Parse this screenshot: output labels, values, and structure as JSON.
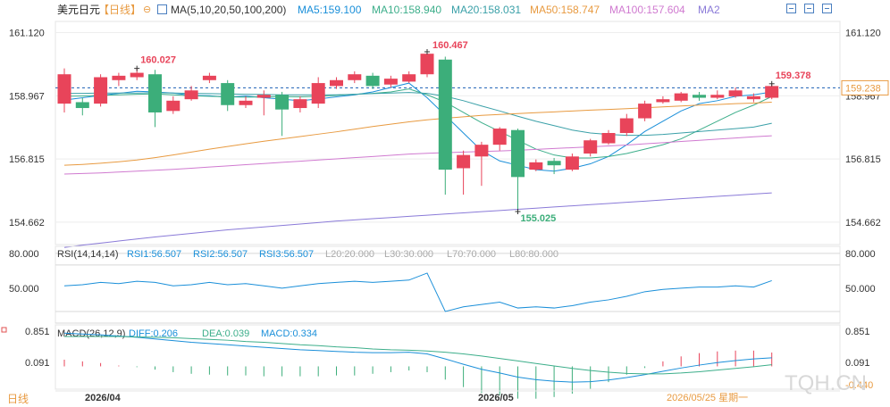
{
  "header": {
    "symbol": "美元日元",
    "period_tag": "【日线】",
    "ma_label": "MA(5,10,20,50,100,200)",
    "ma_values": [
      {
        "text": "MA5:159.100",
        "color": "#1a8fd9"
      },
      {
        "text": "MA10:158.940",
        "color": "#3cae8a"
      },
      {
        "text": "MA20:158.031",
        "color": "#3aa0a8"
      },
      {
        "text": "MA50:158.747",
        "color": "#e89a40"
      },
      {
        "text": "MA100:157.604",
        "color": "#d07ad0"
      },
      {
        "text": "MA2",
        "color": "#8a7ad8"
      }
    ]
  },
  "watermark": "TQH.CN",
  "footer": {
    "period": "日线",
    "month_labels": [
      "2026/04",
      "2026/05"
    ],
    "cursor_date": "2026/05/25 星期一"
  },
  "chart_data": [
    {
      "type": "candlestick",
      "name": "美元日元 日线",
      "y_ticks": [
        "161.120",
        "158.967",
        "156.815",
        "154.662"
      ],
      "ylim": [
        153.9,
        161.5
      ],
      "current_price": "159.238",
      "annotations": {
        "high1": "160.027",
        "high2": "160.467",
        "low": "155.025",
        "last_high": "159.378"
      },
      "candles": [
        {
          "open": 158.7,
          "close": 159.7,
          "high": 159.9,
          "low": 158.4
        },
        {
          "open": 158.75,
          "close": 158.55,
          "high": 158.9,
          "low": 158.3
        },
        {
          "open": 158.7,
          "close": 159.6,
          "high": 159.7,
          "low": 158.6
        },
        {
          "open": 159.5,
          "close": 159.65,
          "high": 159.75,
          "low": 159.3
        },
        {
          "open": 159.6,
          "close": 159.75,
          "high": 159.9,
          "low": 159.5
        },
        {
          "open": 159.7,
          "close": 158.4,
          "high": 159.85,
          "low": 157.9
        },
        {
          "open": 158.45,
          "close": 158.8,
          "high": 158.95,
          "low": 158.35
        },
        {
          "open": 158.85,
          "close": 159.15,
          "high": 159.3,
          "low": 158.8
        },
        {
          "open": 159.5,
          "close": 159.65,
          "high": 159.75,
          "low": 159.4
        },
        {
          "open": 159.4,
          "close": 158.65,
          "high": 159.5,
          "low": 158.45
        },
        {
          "open": 158.65,
          "close": 158.8,
          "high": 158.95,
          "low": 158.55
        },
        {
          "open": 158.9,
          "close": 159.0,
          "high": 159.15,
          "low": 158.3
        },
        {
          "open": 159.0,
          "close": 158.5,
          "high": 159.1,
          "low": 157.6
        },
        {
          "open": 158.55,
          "close": 158.85,
          "high": 158.95,
          "low": 158.4
        },
        {
          "open": 158.7,
          "close": 159.4,
          "high": 159.6,
          "low": 158.55
        },
        {
          "open": 159.3,
          "close": 159.5,
          "high": 159.6,
          "low": 159.2
        },
        {
          "open": 159.5,
          "close": 159.7,
          "high": 159.8,
          "low": 159.4
        },
        {
          "open": 159.65,
          "close": 159.3,
          "high": 159.75,
          "low": 159.2
        },
        {
          "open": 159.35,
          "close": 159.55,
          "high": 159.65,
          "low": 159.25
        },
        {
          "open": 159.45,
          "close": 159.7,
          "high": 159.8,
          "low": 159.4
        },
        {
          "open": 159.7,
          "close": 160.4,
          "high": 160.467,
          "low": 159.6
        },
        {
          "open": 160.2,
          "close": 156.45,
          "high": 160.3,
          "low": 155.6
        },
        {
          "open": 156.5,
          "close": 156.95,
          "high": 157.1,
          "low": 155.6
        },
        {
          "open": 156.9,
          "close": 157.3,
          "high": 157.4,
          "low": 155.9
        },
        {
          "open": 157.3,
          "close": 157.85,
          "high": 157.9,
          "low": 157.1
        },
        {
          "open": 157.8,
          "close": 156.2,
          "high": 157.85,
          "low": 155.025
        },
        {
          "open": 156.45,
          "close": 156.7,
          "high": 156.8,
          "low": 156.4
        },
        {
          "open": 156.75,
          "close": 156.6,
          "high": 156.85,
          "low": 156.3
        },
        {
          "open": 156.45,
          "close": 156.9,
          "high": 157.0,
          "low": 156.4
        },
        {
          "open": 157.0,
          "close": 157.45,
          "high": 157.5,
          "low": 156.9
        },
        {
          "open": 157.35,
          "close": 157.7,
          "high": 157.8,
          "low": 157.3
        },
        {
          "open": 157.7,
          "close": 158.2,
          "high": 158.35,
          "low": 157.6
        },
        {
          "open": 158.2,
          "close": 158.7,
          "high": 158.8,
          "low": 158.1
        },
        {
          "open": 158.75,
          "close": 158.85,
          "high": 158.95,
          "low": 158.7
        },
        {
          "open": 158.8,
          "close": 159.05,
          "high": 159.1,
          "low": 158.75
        },
        {
          "open": 159.0,
          "close": 158.9,
          "high": 159.1,
          "low": 158.8
        },
        {
          "open": 158.9,
          "close": 159.0,
          "high": 159.15,
          "low": 158.85
        },
        {
          "open": 158.95,
          "close": 159.15,
          "high": 159.25,
          "low": 158.9
        },
        {
          "open": 158.85,
          "close": 158.95,
          "high": 159.05,
          "low": 158.75
        },
        {
          "open": 158.9,
          "close": 159.3,
          "high": 159.378,
          "low": 158.85
        }
      ],
      "ma_lines": [
        {
          "name": "MA5",
          "color": "#1a8fd9",
          "values": [
            158.82,
            158.9,
            158.98,
            159.05,
            159.12,
            159.1,
            159.06,
            158.98,
            158.97,
            158.92,
            158.96,
            158.9,
            158.85,
            158.8,
            158.86,
            158.93,
            159.0,
            159.1,
            159.25,
            159.4,
            158.9,
            158.3,
            157.7,
            157.1,
            156.75,
            156.6,
            156.45,
            156.4,
            156.5,
            156.65,
            156.9,
            157.3,
            157.75,
            158.1,
            158.45,
            158.7,
            158.8,
            158.95,
            159.0,
            159.1
          ]
        },
        {
          "name": "MA10",
          "color": "#3cae8a",
          "values": [
            158.95,
            158.96,
            158.98,
            159.0,
            159.02,
            159.03,
            159.0,
            158.97,
            158.95,
            158.93,
            158.92,
            158.93,
            158.94,
            158.93,
            158.95,
            158.98,
            159.02,
            159.05,
            159.1,
            159.2,
            159.0,
            158.75,
            158.4,
            158.05,
            157.75,
            157.45,
            157.15,
            156.95,
            156.85,
            156.85,
            156.9,
            157.0,
            157.15,
            157.3,
            157.5,
            157.8,
            158.1,
            158.4,
            158.65,
            158.94
          ]
        },
        {
          "name": "MA20",
          "color": "#3aa0a8",
          "values": [
            159.05,
            159.05,
            159.06,
            159.06,
            159.06,
            159.07,
            159.06,
            159.05,
            159.04,
            159.03,
            159.02,
            159.01,
            159.0,
            159.0,
            159.0,
            159.0,
            159.02,
            159.04,
            159.06,
            159.08,
            159.05,
            158.95,
            158.8,
            158.62,
            158.45,
            158.27,
            158.1,
            157.95,
            157.8,
            157.7,
            157.65,
            157.62,
            157.62,
            157.65,
            157.7,
            157.75,
            157.8,
            157.85,
            157.9,
            158.031
          ]
        },
        {
          "name": "MA50",
          "color": "#e89a40",
          "values": [
            156.6,
            156.63,
            156.67,
            156.72,
            156.78,
            156.86,
            156.95,
            157.05,
            157.15,
            157.24,
            157.33,
            157.42,
            157.5,
            157.58,
            157.66,
            157.74,
            157.83,
            157.92,
            158.0,
            158.08,
            158.15,
            158.2,
            158.25,
            158.3,
            158.33,
            158.36,
            158.39,
            158.42,
            158.45,
            158.48,
            158.5,
            158.53,
            158.56,
            158.59,
            158.62,
            158.65,
            158.67,
            158.7,
            158.72,
            158.747
          ]
        },
        {
          "name": "MA100",
          "color": "#d07ad0",
          "values": [
            156.3,
            156.32,
            156.34,
            156.37,
            156.4,
            156.43,
            156.46,
            156.5,
            156.54,
            156.58,
            156.62,
            156.66,
            156.7,
            156.74,
            156.78,
            156.82,
            156.86,
            156.9,
            156.94,
            156.98,
            157.01,
            157.03,
            157.05,
            157.07,
            157.09,
            157.11,
            157.14,
            157.17,
            157.2,
            157.23,
            157.26,
            157.29,
            157.33,
            157.37,
            157.41,
            157.45,
            157.49,
            157.53,
            157.57,
            157.604
          ]
        },
        {
          "name": "MA2",
          "color": "#8a7ad8",
          "values": [
            153.8,
            153.88,
            153.95,
            154.02,
            154.09,
            154.16,
            154.22,
            154.28,
            154.34,
            154.4,
            154.45,
            154.5,
            154.55,
            154.6,
            154.65,
            154.7,
            154.74,
            154.78,
            154.82,
            154.86,
            154.9,
            154.94,
            154.98,
            155.02,
            155.06,
            155.1,
            155.14,
            155.18,
            155.22,
            155.26,
            155.3,
            155.34,
            155.38,
            155.42,
            155.46,
            155.5,
            155.54,
            155.58,
            155.62,
            155.66
          ]
        }
      ]
    },
    {
      "type": "line",
      "name": "RSI",
      "legend": [
        {
          "text": "RSI(14,14,14)",
          "color": "#333333"
        },
        {
          "text": "RSI1:56.507",
          "color": "#1a8fd9"
        },
        {
          "text": "RSI2:56.507",
          "color": "#1a8fd9"
        },
        {
          "text": "RSI3:56.507",
          "color": "#1a8fd9"
        },
        {
          "text": "L20:20.000",
          "color": "#aaaaaa"
        },
        {
          "text": "L30:30.000",
          "color": "#aaaaaa"
        },
        {
          "text": "L70:70.000",
          "color": "#aaaaaa"
        },
        {
          "text": "L80:80.000",
          "color": "#aaaaaa"
        }
      ],
      "y_ticks": [
        "80.000",
        "50.000"
      ],
      "ylim": [
        20,
        86
      ],
      "levels": [
        80,
        70,
        30,
        20
      ],
      "series": [
        {
          "name": "RSI1",
          "color": "#1a8fd9",
          "values": [
            52,
            53,
            55,
            54,
            56,
            55,
            52,
            53,
            55,
            53,
            54,
            52,
            50,
            52,
            54,
            55,
            56,
            55,
            56,
            57,
            63,
            30,
            34,
            36,
            38,
            33,
            34,
            33,
            35,
            38,
            40,
            43,
            47,
            49,
            50,
            51,
            51,
            52,
            51,
            56.5
          ]
        }
      ]
    },
    {
      "type": "bar",
      "name": "MACD",
      "legend": [
        {
          "text": "MACD(26,12,9)",
          "color": "#333333"
        },
        {
          "text": "DIFF:0.206",
          "color": "#1a8fd9"
        },
        {
          "text": "DEA:0.039",
          "color": "#3cae8a"
        },
        {
          "text": "MACD:0.334",
          "color": "#1a8fd9"
        }
      ],
      "y_ticks": [
        "0.851",
        "0.091",
        "-0.440"
      ],
      "ylim": [
        -0.55,
        1.0
      ],
      "diff": [
        0.8,
        0.78,
        0.76,
        0.73,
        0.7,
        0.66,
        0.62,
        0.58,
        0.55,
        0.52,
        0.49,
        0.46,
        0.43,
        0.4,
        0.38,
        0.36,
        0.34,
        0.33,
        0.33,
        0.34,
        0.3,
        0.18,
        0.05,
        -0.07,
        -0.16,
        -0.26,
        -0.32,
        -0.36,
        -0.38,
        -0.37,
        -0.33,
        -0.27,
        -0.2,
        -0.12,
        -0.04,
        0.03,
        0.09,
        0.14,
        0.18,
        0.206
      ],
      "dea": [
        0.72,
        0.72,
        0.72,
        0.72,
        0.71,
        0.7,
        0.69,
        0.67,
        0.65,
        0.63,
        0.6,
        0.58,
        0.55,
        0.52,
        0.5,
        0.47,
        0.45,
        0.42,
        0.4,
        0.39,
        0.37,
        0.34,
        0.3,
        0.25,
        0.19,
        0.13,
        0.07,
        0.01,
        -0.05,
        -0.1,
        -0.14,
        -0.17,
        -0.18,
        -0.18,
        -0.16,
        -0.13,
        -0.09,
        -0.05,
        -0.01,
        0.039
      ],
      "macd": [
        0.16,
        0.12,
        0.08,
        0.02,
        -0.02,
        -0.08,
        -0.14,
        -0.18,
        -0.2,
        -0.22,
        -0.22,
        -0.24,
        -0.24,
        -0.24,
        -0.24,
        -0.22,
        -0.22,
        -0.18,
        -0.14,
        -0.1,
        -0.14,
        -0.32,
        -0.5,
        -0.64,
        -0.7,
        -0.78,
        -0.78,
        -0.74,
        -0.66,
        -0.54,
        -0.38,
        -0.2,
        -0.04,
        0.12,
        0.24,
        0.32,
        0.36,
        0.38,
        0.38,
        0.334
      ]
    }
  ]
}
